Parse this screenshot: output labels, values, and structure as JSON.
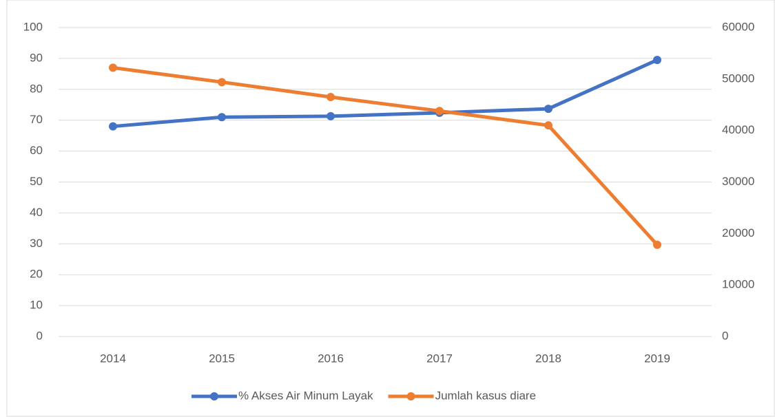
{
  "chart_data": {
    "type": "line",
    "categories": [
      "2014",
      "2015",
      "2016",
      "2017",
      "2018",
      "2019"
    ],
    "series": [
      {
        "name": "% Akses Air Minum Layak",
        "color": "#4472c4",
        "values": [
          68,
          71,
          71.3,
          72.4,
          73.7,
          89.5
        ]
      },
      {
        "name": "Jumlah kasus diare",
        "color": "#ed7d31",
        "axis": "y2",
        "values": [
          52200,
          49400,
          46500,
          43800,
          41000,
          17800
        ]
      }
    ],
    "ylim": [
      0,
      100
    ],
    "yticks": [
      0,
      10,
      20,
      30,
      40,
      50,
      60,
      70,
      80,
      90,
      100
    ],
    "y2lim": [
      0,
      60000
    ],
    "y2ticks": [
      0,
      10000,
      20000,
      30000,
      40000,
      50000,
      60000
    ],
    "grid": true,
    "legend": "bottom"
  }
}
